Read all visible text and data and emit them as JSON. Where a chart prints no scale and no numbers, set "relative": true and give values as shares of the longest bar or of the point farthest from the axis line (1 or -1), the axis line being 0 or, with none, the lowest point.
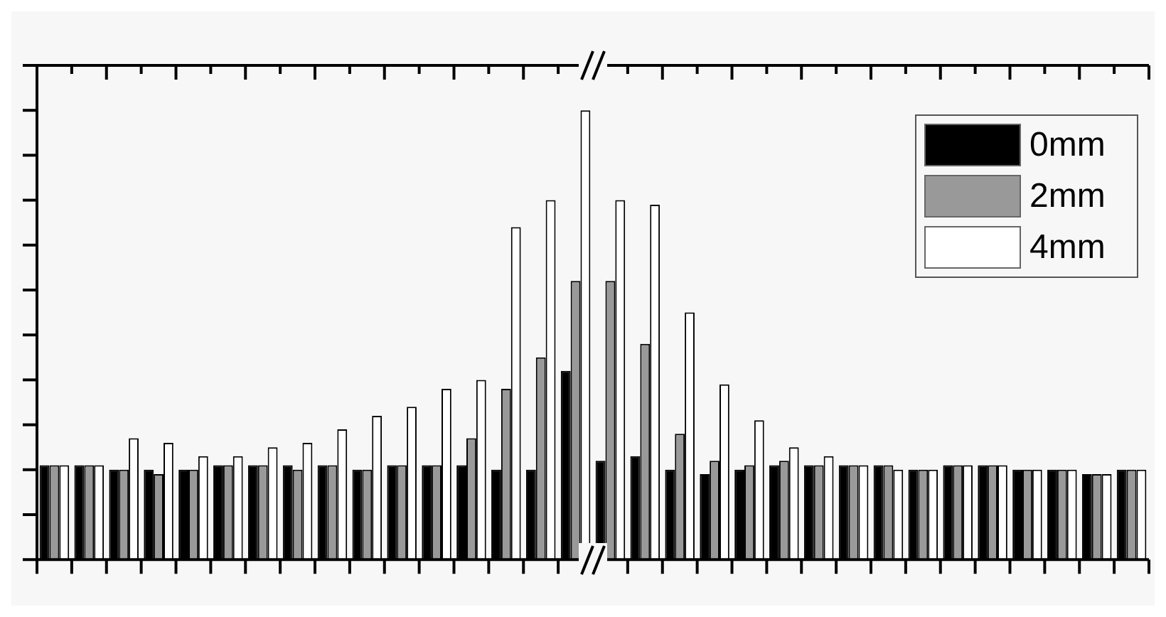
{
  "chart_data": {
    "type": "bar",
    "relative": true,
    "legend": "top right",
    "grid": false,
    "categories": [
      null,
      null,
      null,
      null,
      null,
      null,
      null,
      null,
      null,
      null,
      null,
      null,
      null,
      null,
      null,
      null,
      null,
      null,
      null,
      null,
      null,
      null,
      null,
      null,
      null,
      null,
      null,
      null,
      null,
      null,
      null,
      null
    ],
    "series": [
      {
        "name": "0mm",
        "color": "#000000",
        "values": [
          0.21,
          0.21,
          0.2,
          0.2,
          0.2,
          0.21,
          0.21,
          0.21,
          0.21,
          0.2,
          0.21,
          0.21,
          0.21,
          0.2,
          0.2,
          0.42,
          0.22,
          0.23,
          0.2,
          0.19,
          0.2,
          0.21,
          0.21,
          0.21,
          0.21,
          0.2,
          0.21,
          0.21,
          0.2,
          0.2,
          0.19,
          0.2
        ]
      },
      {
        "name": "2mm",
        "color": "#999999",
        "values": [
          0.21,
          0.21,
          0.2,
          0.19,
          0.2,
          0.21,
          0.21,
          0.2,
          0.21,
          0.2,
          0.21,
          0.21,
          0.27,
          0.38,
          0.45,
          0.62,
          0.62,
          0.48,
          0.28,
          0.22,
          0.21,
          0.22,
          0.21,
          0.21,
          0.21,
          0.2,
          0.21,
          0.21,
          0.2,
          0.2,
          0.19,
          0.2
        ]
      },
      {
        "name": "4mm",
        "color": "#ffffff",
        "values": [
          0.21,
          0.21,
          0.27,
          0.26,
          0.23,
          0.23,
          0.25,
          0.26,
          0.29,
          0.32,
          0.34,
          0.38,
          0.4,
          0.74,
          0.8,
          1,
          0.8,
          0.79,
          0.55,
          0.39,
          0.31,
          0.25,
          0.23,
          0.21,
          0.2,
          0.2,
          0.21,
          0.21,
          0.2,
          0.2,
          0.19,
          0.2
        ]
      }
    ]
  }
}
